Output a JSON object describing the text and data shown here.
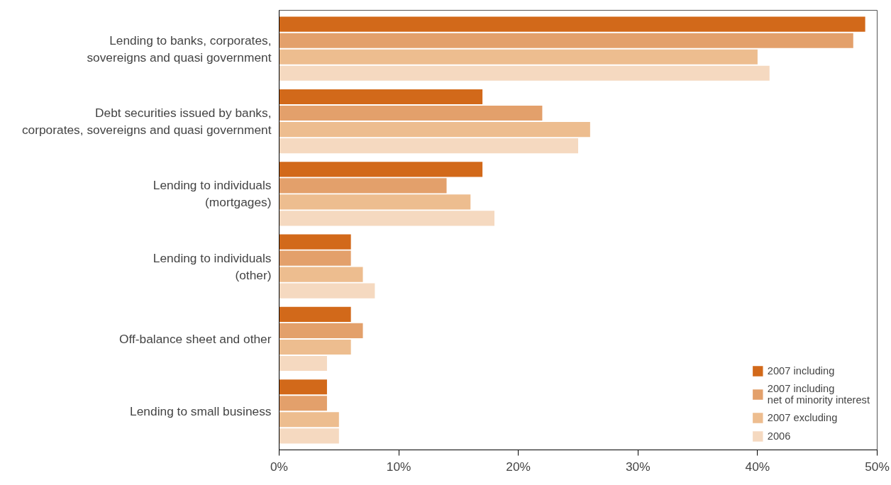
{
  "chart_data": {
    "type": "bar",
    "orientation": "horizontal",
    "categories": [
      "Lending to banks, corporates,\nsovereigns and quasi government",
      "Debt securities issued by banks,\ncorporates, sovereigns and quasi government",
      "Lending to individuals\n(mortgages)",
      "Lending to individuals\n(other)",
      "Off-balance sheet and other",
      "Lending to small business"
    ],
    "series": [
      {
        "name": "2007 including",
        "color": "#d2691a",
        "values": [
          49,
          17,
          17,
          6,
          6,
          4
        ]
      },
      {
        "name": "2007 including\nnet of minority interest",
        "color": "#e3a06b",
        "values": [
          48,
          22,
          14,
          6,
          7,
          4
        ]
      },
      {
        "name": "2007 excluding",
        "color": "#edbd8f",
        "values": [
          40,
          26,
          16,
          7,
          6,
          5
        ]
      },
      {
        "name": "2006",
        "color": "#f5d9c0",
        "values": [
          41,
          25,
          18,
          8,
          4,
          5
        ]
      }
    ],
    "xlim": [
      0,
      50
    ],
    "xticks": [
      {
        "value": 0,
        "label": "0%"
      },
      {
        "value": 10,
        "label": "10%"
      },
      {
        "value": 20,
        "label": "20%"
      },
      {
        "value": 30,
        "label": "30%"
      },
      {
        "value": 40,
        "label": "40%"
      },
      {
        "value": 50,
        "label": "50%"
      }
    ],
    "grid": false,
    "legend": "bottom right"
  }
}
